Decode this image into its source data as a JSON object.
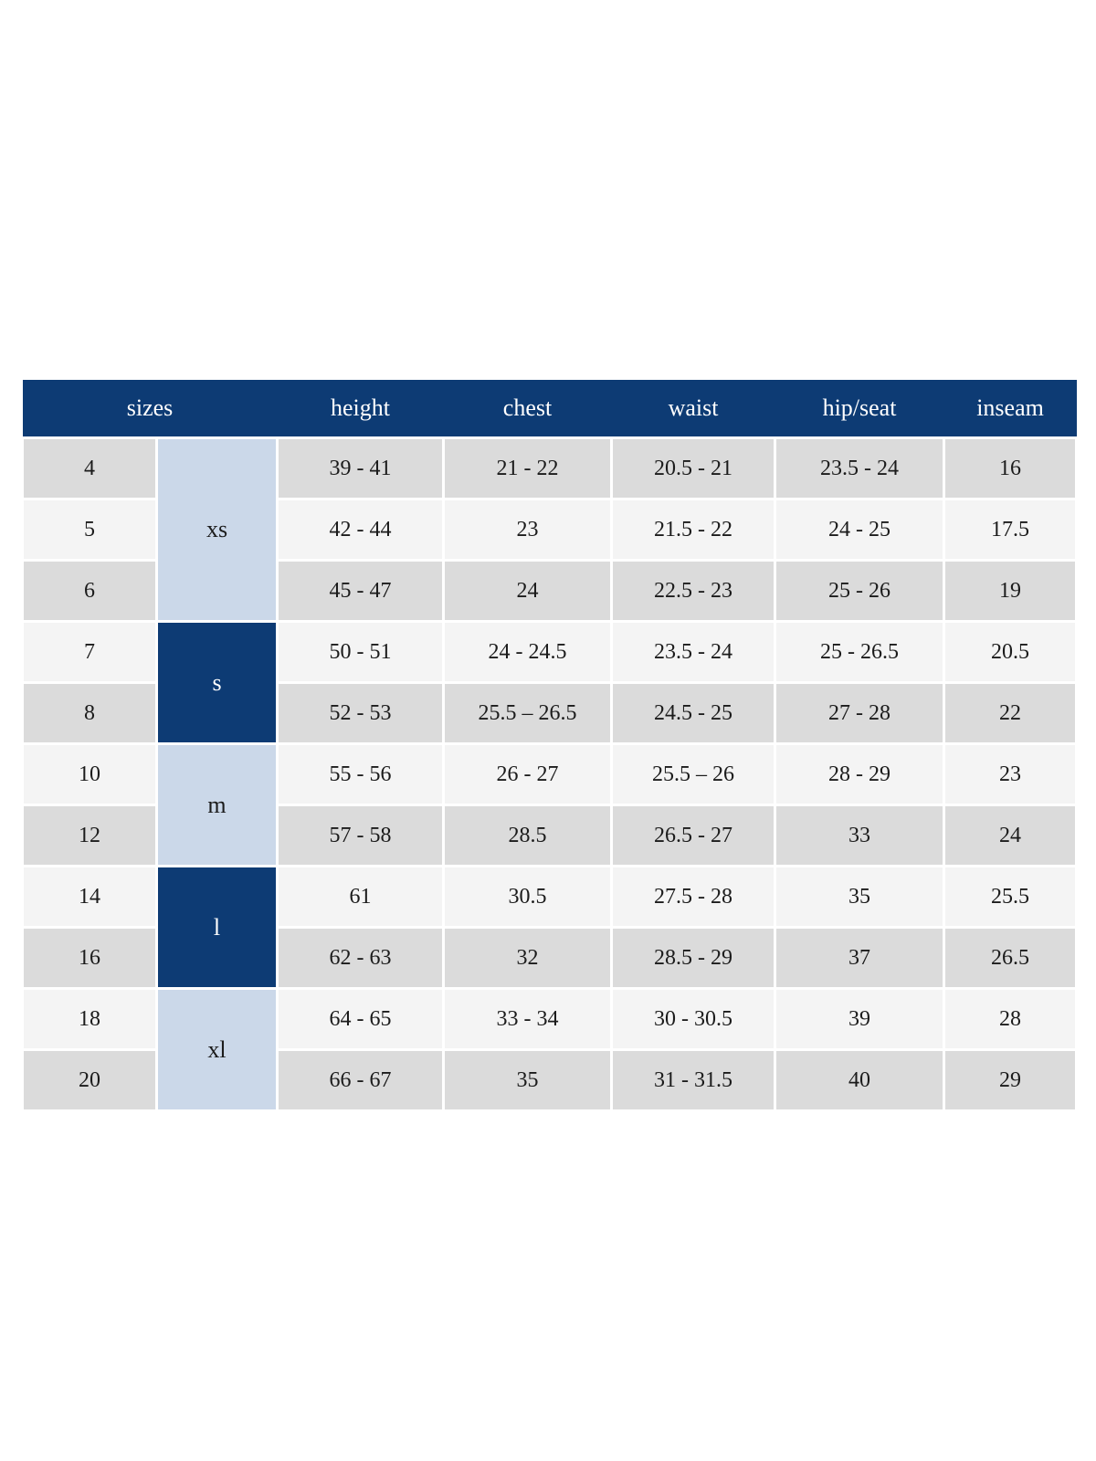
{
  "colors": {
    "header_bg": "#0d3b74",
    "header_text": "#ffffff",
    "group_dark_bg": "#0d3b74",
    "group_dark_text": "#ffffff",
    "group_light_bg": "#cbd8e9",
    "row_gray": "#dbdbdb",
    "row_light": "#f4f4f4",
    "cell_text": "#1b1b1b",
    "divider": "#ffffff"
  },
  "chart_data": {
    "type": "table",
    "header": {
      "sizes_label": "sizes",
      "measure_columns": [
        "height",
        "chest",
        "waist",
        "hip/seat",
        "inseam"
      ]
    },
    "groups": [
      {
        "label": "xs",
        "variant": "light",
        "rows": [
          {
            "size": "4",
            "height": "39 - 41",
            "chest": "21 - 22",
            "waist": "20.5 - 21",
            "hip_seat": "23.5 - 24",
            "inseam": "16"
          },
          {
            "size": "5",
            "height": "42 - 44",
            "chest": "23",
            "waist": "21.5 - 22",
            "hip_seat": "24 - 25",
            "inseam": "17.5"
          },
          {
            "size": "6",
            "height": "45 - 47",
            "chest": "24",
            "waist": "22.5 - 23",
            "hip_seat": "25 - 26",
            "inseam": "19"
          }
        ]
      },
      {
        "label": "s",
        "variant": "dark",
        "rows": [
          {
            "size": "7",
            "height": "50 - 51",
            "chest": "24 - 24.5",
            "waist": "23.5 - 24",
            "hip_seat": "25 - 26.5",
            "inseam": "20.5"
          },
          {
            "size": "8",
            "height": "52 - 53",
            "chest": "25.5 – 26.5",
            "waist": "24.5 - 25",
            "hip_seat": "27 - 28",
            "inseam": "22"
          }
        ]
      },
      {
        "label": "m",
        "variant": "light",
        "rows": [
          {
            "size": "10",
            "height": "55 - 56",
            "chest": "26 - 27",
            "waist": "25.5 – 26",
            "hip_seat": "28 - 29",
            "inseam": "23"
          },
          {
            "size": "12",
            "height": "57 - 58",
            "chest": "28.5",
            "waist": "26.5 - 27",
            "hip_seat": "33",
            "inseam": "24"
          }
        ]
      },
      {
        "label": "l",
        "variant": "dark",
        "rows": [
          {
            "size": "14",
            "height": "61",
            "chest": "30.5",
            "waist": "27.5 - 28",
            "hip_seat": "35",
            "inseam": "25.5"
          },
          {
            "size": "16",
            "height": "62 - 63",
            "chest": "32",
            "waist": "28.5 - 29",
            "hip_seat": "37",
            "inseam": "26.5"
          }
        ]
      },
      {
        "label": "xl",
        "variant": "light",
        "rows": [
          {
            "size": "18",
            "height": "64 - 65",
            "chest": "33 - 34",
            "waist": "30 - 30.5",
            "hip_seat": "39",
            "inseam": "28"
          },
          {
            "size": "20",
            "height": "66 - 67",
            "chest": "35",
            "waist": "31 - 31.5",
            "hip_seat": "40",
            "inseam": "29"
          }
        ]
      }
    ]
  }
}
